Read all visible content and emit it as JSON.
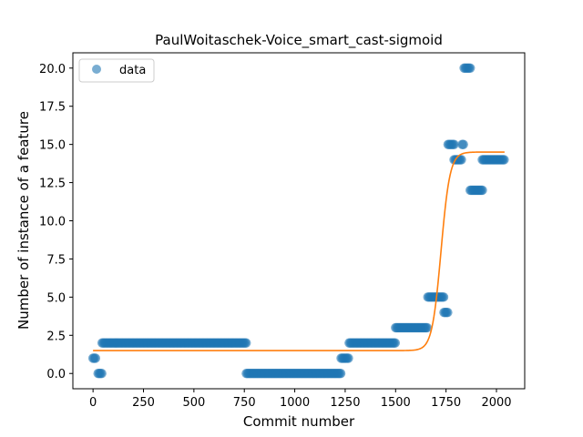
{
  "chart_data": {
    "type": "scatter",
    "title": "PaulWoitaschek-Voice_smart_cast-sigmoid",
    "xlabel": "Commit number",
    "ylabel": "Number of instance of a feature",
    "xlim": [
      -100,
      2140
    ],
    "ylim": [
      -1.0,
      21.0
    ],
    "xticks": [
      0,
      250,
      500,
      750,
      1000,
      1250,
      1500,
      1750,
      2000
    ],
    "yticks": [
      0.0,
      2.5,
      5.0,
      7.5,
      10.0,
      12.5,
      15.0,
      17.5,
      20.0
    ],
    "xtick_labels": [
      "0",
      "250",
      "500",
      "750",
      "1000",
      "1250",
      "1500",
      "1750",
      "2000"
    ],
    "ytick_labels": [
      "0.0",
      "2.5",
      "5.0",
      "7.5",
      "10.0",
      "12.5",
      "15.0",
      "17.5",
      "20.0"
    ],
    "grid": false,
    "legend": {
      "position": "top-left",
      "entries": [
        "data"
      ]
    },
    "series": [
      {
        "name": "data",
        "kind": "scatter",
        "color": "#1f77b4",
        "segments": [
          {
            "x_start": 0,
            "x_end": 15,
            "y": 1
          },
          {
            "x_start": 25,
            "x_end": 45,
            "y": 0
          },
          {
            "x_start": 45,
            "x_end": 760,
            "y": 2
          },
          {
            "x_start": 760,
            "x_end": 1230,
            "y": 0
          },
          {
            "x_start": 1230,
            "x_end": 1270,
            "y": 1
          },
          {
            "x_start": 1270,
            "x_end": 1500,
            "y": 2
          },
          {
            "x_start": 1500,
            "x_end": 1660,
            "y": 3
          },
          {
            "x_start": 1660,
            "x_end": 1740,
            "y": 5
          },
          {
            "x_start": 1740,
            "x_end": 1760,
            "y": 4
          },
          {
            "x_start": 1760,
            "x_end": 1790,
            "y": 15
          },
          {
            "x_start": 1790,
            "x_end": 1830,
            "y": 14
          },
          {
            "x_start": 1830,
            "x_end": 1840,
            "y": 15
          },
          {
            "x_start": 1840,
            "x_end": 1870,
            "y": 20
          },
          {
            "x_start": 1870,
            "x_end": 1930,
            "y": 12
          },
          {
            "x_start": 1930,
            "x_end": 2040,
            "y": 14
          }
        ]
      },
      {
        "kind": "line",
        "color": "#ff7f0e",
        "model": "sigmoid",
        "params": {
          "low": 1.5,
          "high": 14.5,
          "x0": 1725,
          "k": 0.045
        },
        "x_range": [
          0,
          2040
        ]
      }
    ]
  }
}
